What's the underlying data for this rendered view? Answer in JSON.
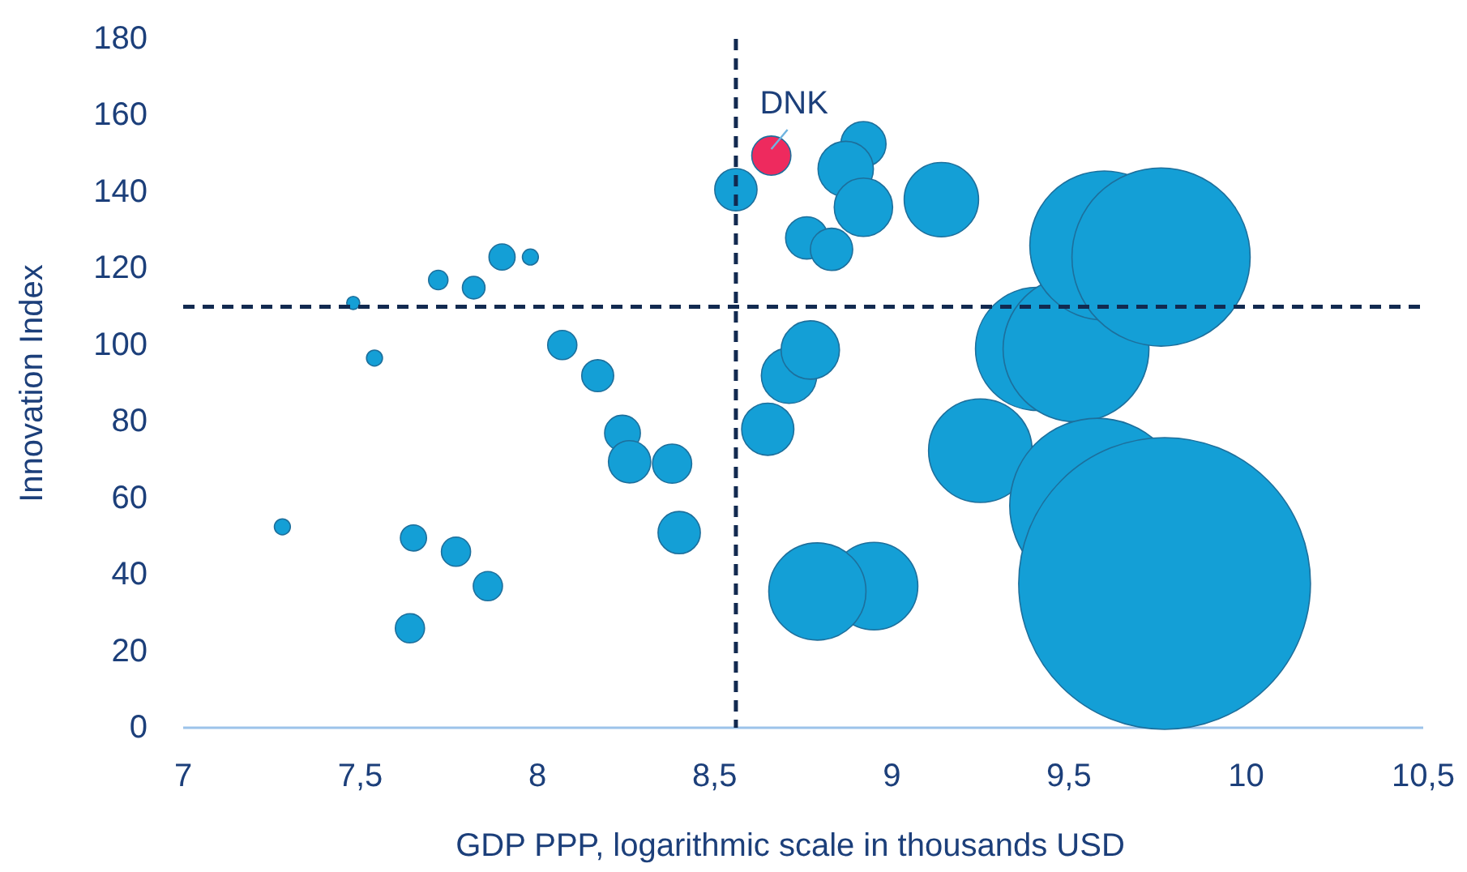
{
  "chart_data": {
    "type": "bubble",
    "xlabel": "GDP PPP, logarithmic scale in thousands USD",
    "ylabel": "Innovation Index",
    "x": [
      7.28,
      7.48,
      7.54,
      7.72,
      7.82,
      7.9,
      7.98,
      7.65,
      7.77,
      7.86,
      7.64,
      8.07,
      8.17,
      8.24,
      8.26,
      8.38,
      8.4,
      8.56,
      8.66,
      8.65,
      8.71,
      8.77,
      8.76,
      8.83,
      8.92,
      8.87,
      8.92,
      8.95,
      8.79,
      9.14,
      9.25,
      9.41,
      9.52,
      9.58,
      9.6,
      9.76,
      9.77
    ],
    "values": [
      52.5,
      111,
      96.6,
      117,
      115,
      123,
      123,
      49.6,
      46,
      37,
      26,
      100,
      92,
      77,
      69.5,
      69,
      51,
      140.6,
      149.5,
      78,
      92,
      98.7,
      128,
      125,
      152.5,
      146,
      136,
      37,
      35.6,
      138,
      72.4,
      99,
      99,
      58,
      126,
      123,
      37.7
    ],
    "sizes": [
      0.003,
      0.002,
      0.003,
      0.0044,
      0.006,
      0.008,
      0.003,
      0.008,
      0.01,
      0.01,
      0.01,
      0.01,
      0.012,
      0.015,
      0.021,
      0.018,
      0.021,
      0.021,
      0.018,
      0.032,
      0.036,
      0.04,
      0.021,
      0.021,
      0.024,
      0.036,
      0.04,
      0.09,
      0.111,
      0.065,
      0.126,
      0.178,
      0.25,
      0.36,
      0.261,
      0.373,
      1
    ],
    "colors": [
      "#149fd6",
      "#149fd6",
      "#149fd6",
      "#149fd6",
      "#149fd6",
      "#149fd6",
      "#149fd6",
      "#149fd6",
      "#149fd6",
      "#149fd6",
      "#149fd6",
      "#149fd6",
      "#149fd6",
      "#149fd6",
      "#149fd6",
      "#149fd6",
      "#149fd6",
      "#149fd6",
      "#ee2a5e",
      "#149fd6",
      "#149fd6",
      "#149fd6",
      "#149fd6",
      "#149fd6",
      "#149fd6",
      "#149fd6",
      "#149fd6",
      "#149fd6",
      "#149fd6",
      "#149fd6",
      "#149fd6",
      "#149fd6",
      "#149fd6",
      "#149fd6",
      "#149fd6",
      "#149fd6",
      "#149fd6"
    ],
    "xlim": [
      7,
      10.5
    ],
    "xticks": [
      7,
      {
        "value": 7.5,
        "label": "7,5"
      },
      8,
      {
        "value": 8.5,
        "label": "8,5"
      },
      9,
      {
        "value": 9.5,
        "label": "9,5"
      },
      10,
      {
        "value": 10.5,
        "label": "10,5"
      }
    ],
    "ylim": [
      0,
      180
    ],
    "yticks": [
      0,
      20,
      40,
      60,
      80,
      100,
      120,
      140,
      160,
      180
    ],
    "ref_lines": [
      {
        "axis": "x",
        "value": 8.56,
        "color": "#122a50",
        "line_style": "dashed"
      },
      {
        "axis": "y",
        "value": 110,
        "color": "#122a50",
        "line_style": "dashed"
      }
    ],
    "annotations": [
      {
        "text": "DNK",
        "x": 8.66,
        "y": 149.5
      }
    ],
    "grid": false
  }
}
